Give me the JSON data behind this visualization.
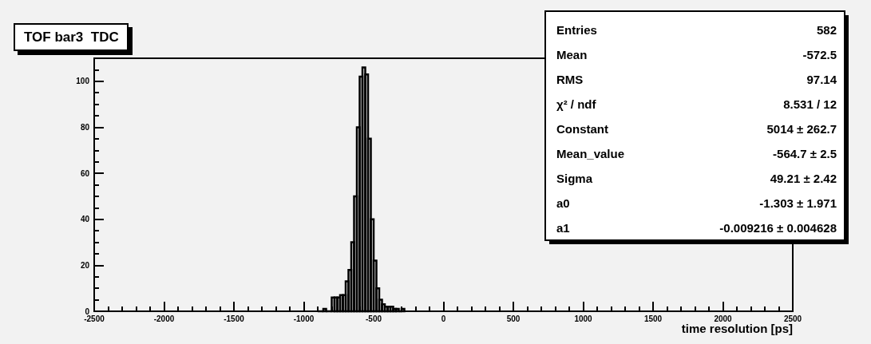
{
  "chart_data": {
    "type": "histogram",
    "title": "TOF bar3  TDC",
    "xlabel": "time resolution [ps]",
    "bins": [
      -900,
      -880,
      -860,
      -840,
      -820,
      -800,
      -780,
      -760,
      -740,
      -720,
      -700,
      -680,
      -660,
      -640,
      -620,
      -600,
      -580,
      -560,
      -540,
      -520,
      -500,
      -480,
      -460,
      -440,
      -420,
      -400,
      -380,
      -360,
      -340,
      -320,
      -300,
      -280
    ],
    "values": [
      0,
      0,
      1,
      0,
      0,
      6,
      6,
      6,
      7,
      7,
      13,
      18,
      30,
      50,
      80,
      102,
      106,
      103,
      75,
      40,
      22,
      10,
      5,
      3,
      2,
      2,
      2,
      1,
      1,
      0,
      1
    ],
    "color": "#000000",
    "xlim": [
      -2500,
      2500
    ],
    "xticks": [
      -2500,
      -2000,
      -1500,
      -1000,
      -500,
      0,
      500,
      1000,
      1500,
      2000,
      2500
    ],
    "ylim": [
      0,
      110
    ],
    "yticks": [
      0,
      20,
      40,
      60,
      80,
      100
    ],
    "annotations": [
      "Entries",
      "582",
      "Mean",
      "-572.5",
      "RMS",
      "97.14",
      "χ² / ndf",
      "8.531 / 12",
      "Constant",
      "5014 ± 262.7",
      "Mean_value",
      "-564.7 ± 2.5",
      "Sigma",
      "49.21 ± 2.42",
      "a0",
      "-1.303 ± 1.971",
      "a1",
      "-0.009216 ± 0.004628"
    ]
  }
}
